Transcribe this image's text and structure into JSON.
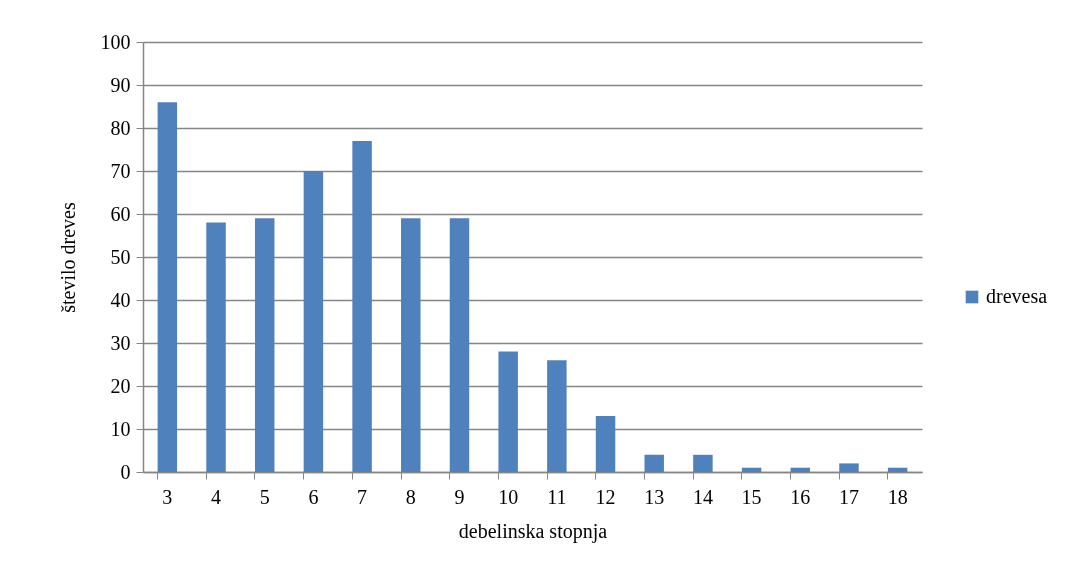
{
  "chart_data": {
    "type": "bar",
    "xlabel": "debelinska stopnja",
    "ylabel": "število dreves",
    "categories": [
      "3",
      "4",
      "5",
      "6",
      "7",
      "8",
      "9",
      "10",
      "11",
      "12",
      "13",
      "14",
      "15",
      "16",
      "17",
      "18"
    ],
    "series": [
      {
        "name": "drevesa",
        "color": "#4f81bd",
        "values": [
          86,
          58,
          59,
          70,
          77,
          59,
          59,
          28,
          26,
          13,
          4,
          4,
          1,
          1,
          2,
          1
        ]
      }
    ],
    "ylim": [
      0,
      100
    ],
    "yticks": [
      0,
      10,
      20,
      30,
      40,
      50,
      60,
      70,
      80,
      90,
      100
    ],
    "grid": "y",
    "legend": "right"
  }
}
